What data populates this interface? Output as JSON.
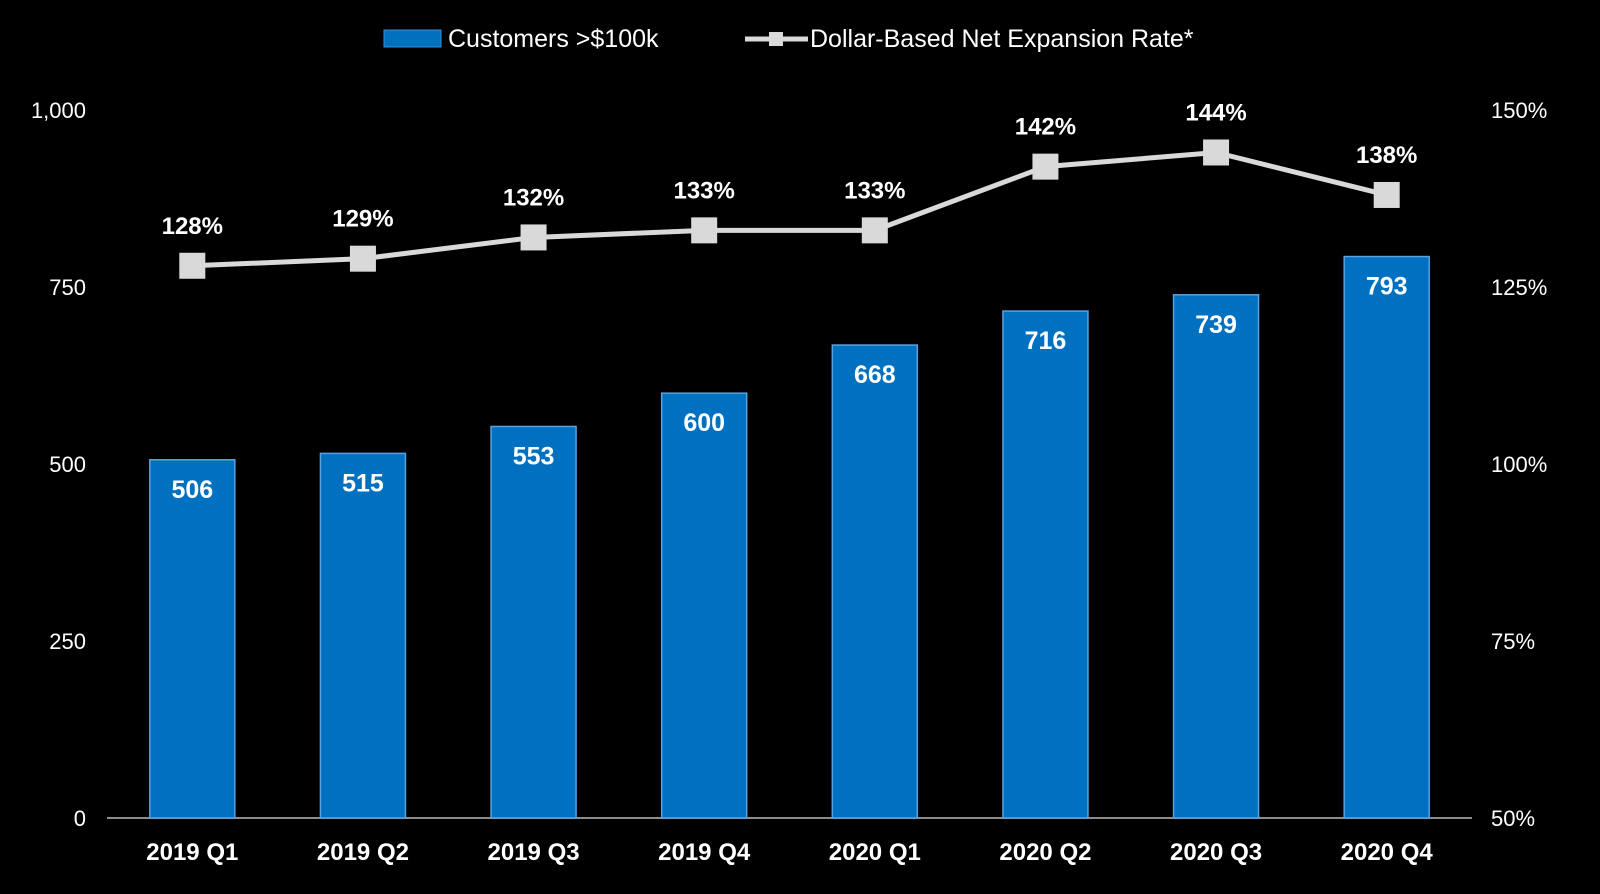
{
  "chart_data": {
    "type": "bar",
    "categories": [
      "2019 Q1",
      "2019 Q2",
      "2019 Q3",
      "2019 Q4",
      "2020 Q1",
      "2020 Q2",
      "2020 Q3",
      "2020 Q4"
    ],
    "series": [
      {
        "name": "Customers >$100k",
        "type": "bar",
        "axis": "left",
        "values": [
          506,
          515,
          553,
          600,
          668,
          716,
          739,
          793
        ],
        "labels": [
          "506",
          "515",
          "553",
          "600",
          "668",
          "716",
          "739",
          "793"
        ],
        "color": "#0070c0"
      },
      {
        "name": "Dollar-Based Net Expansion Rate*",
        "type": "line",
        "axis": "right",
        "values": [
          128,
          129,
          132,
          133,
          133,
          142,
          144,
          138
        ],
        "labels": [
          "128%",
          "129%",
          "132%",
          "133%",
          "133%",
          "142%",
          "144%",
          "138%"
        ],
        "color": "#d9d9d9"
      }
    ],
    "y_left": {
      "range": [
        0,
        1000
      ],
      "ticks": [
        0,
        250,
        500,
        750,
        1000
      ],
      "tick_labels": [
        "0",
        "250",
        "500",
        "750",
        "1,000"
      ]
    },
    "y_right": {
      "range": [
        50,
        150
      ],
      "ticks": [
        50,
        75,
        100,
        125,
        150
      ],
      "tick_labels": [
        "50%",
        "75%",
        "100%",
        "125%",
        "150%"
      ]
    },
    "legend": {
      "position": "top-center",
      "entries": [
        "Customers >$100k",
        "Dollar-Based Net Expansion Rate*"
      ]
    },
    "title": "",
    "xlabel": "",
    "ylabel": ""
  }
}
